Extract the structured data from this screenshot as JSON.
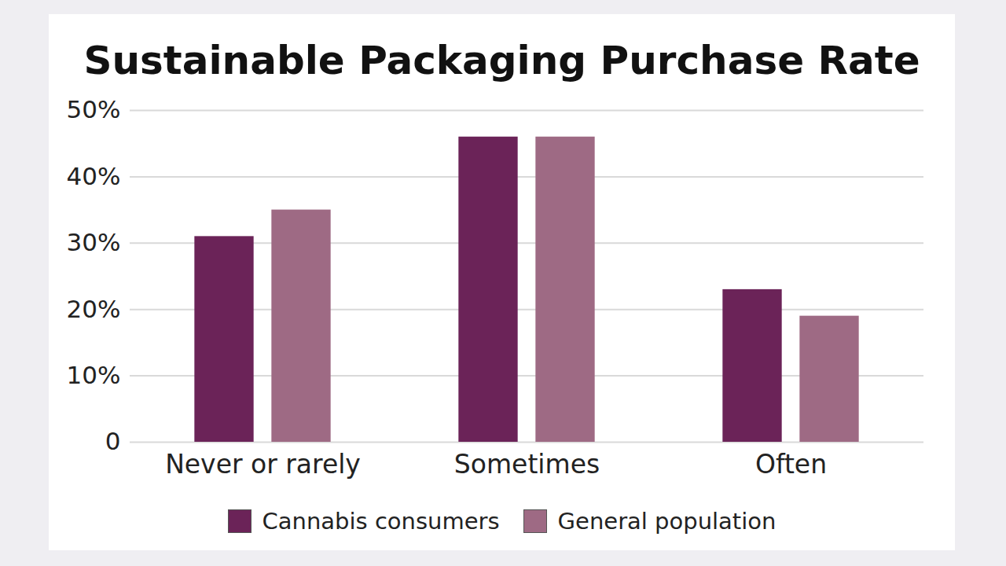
{
  "chart_data": {
    "type": "bar",
    "title": "Sustainable Packaging Purchase Rate",
    "categories": [
      "Never or rarely",
      "Sometimes",
      "Often"
    ],
    "series": [
      {
        "name": "Cannabis consumers",
        "color": "#6b2358",
        "values": [
          31,
          46,
          23
        ]
      },
      {
        "name": "General population",
        "color": "#9e6a84",
        "values": [
          35,
          46,
          19
        ]
      }
    ],
    "ylim": [
      0,
      50
    ],
    "yticks": [
      0,
      {
        "value": 10,
        "label": "10%"
      },
      {
        "value": 20,
        "label": "20%"
      },
      {
        "value": 30,
        "label": "30%"
      },
      {
        "value": 40,
        "label": "40%"
      },
      {
        "value": 50,
        "label": "50%"
      }
    ],
    "grid": true,
    "legend": "bottom"
  }
}
